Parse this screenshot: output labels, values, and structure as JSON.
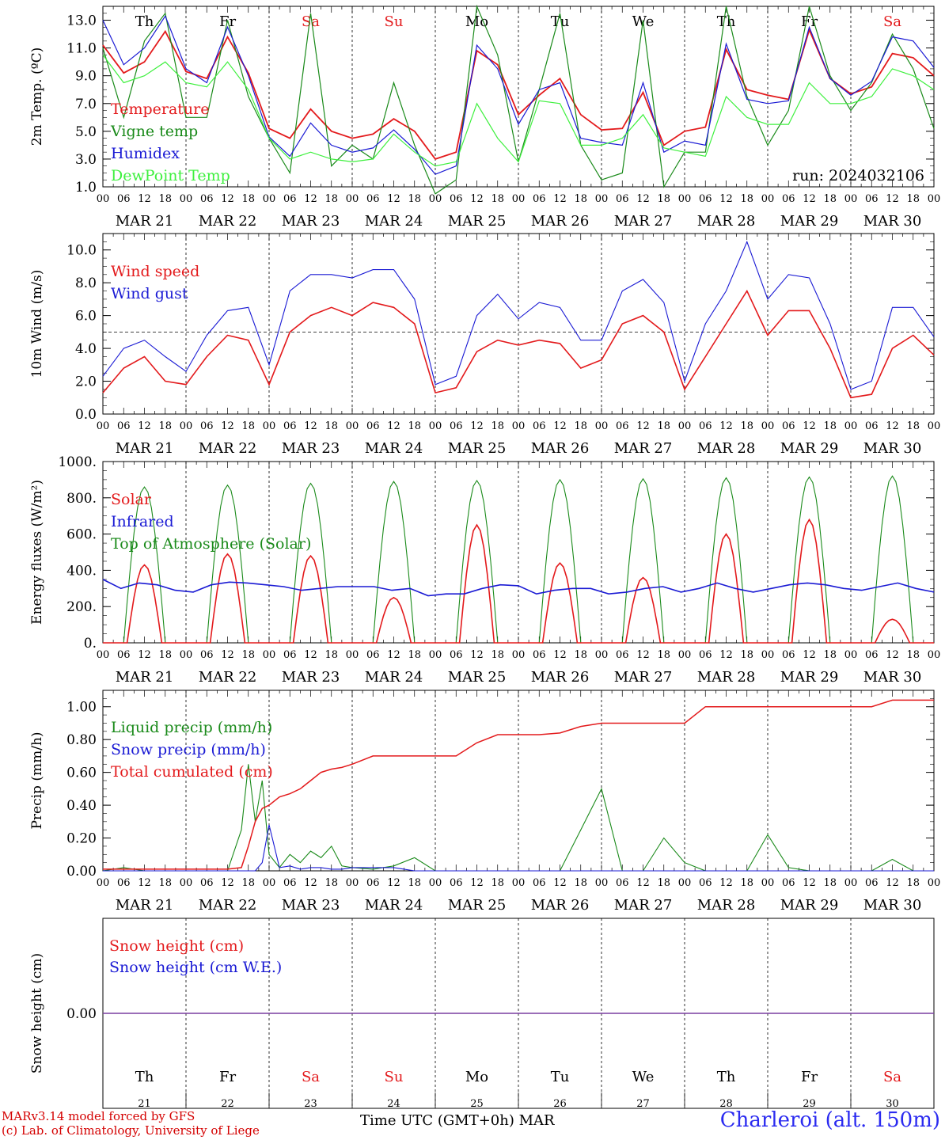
{
  "chart_data": [
    {
      "type": "line",
      "ylabel": "2m Temp. (ºC)",
      "ylim": [
        1.0,
        14.0
      ],
      "yticks": [
        "1.0",
        "3.0",
        "5.0",
        "7.0",
        "9.0",
        "11.0",
        "13.0"
      ],
      "annotation": "run: 2024032106",
      "x_hours": [
        0,
        6,
        12,
        18,
        24,
        30,
        36,
        42,
        48,
        54,
        60,
        66,
        72,
        78,
        84,
        90,
        96,
        102,
        108,
        114,
        120,
        126,
        132,
        138,
        144,
        150,
        156,
        162,
        168,
        174,
        180,
        186,
        192,
        198,
        204,
        210,
        216,
        222,
        228,
        234,
        240
      ],
      "series": [
        {
          "name": "Temperature",
          "color": "#e31a1c",
          "values": [
            11.2,
            9.2,
            10.0,
            12.2,
            9.3,
            8.8,
            11.8,
            9.2,
            5.2,
            4.5,
            6.6,
            5.0,
            4.5,
            4.8,
            5.9,
            5.0,
            3.0,
            3.5,
            10.8,
            9.8,
            6.2,
            7.6,
            8.8,
            6.2,
            5.1,
            5.2,
            7.8,
            4.0,
            5.0,
            5.3,
            10.9,
            8.0,
            7.6,
            7.3,
            12.3,
            8.8,
            7.7,
            8.2,
            10.6,
            10.3,
            9.0
          ]
        },
        {
          "name": "Vigne temp",
          "color": "#1a8a1a",
          "values": [
            11.0,
            6.0,
            11.5,
            13.5,
            6.0,
            6.0,
            13.0,
            7.5,
            4.5,
            2.0,
            13.5,
            2.5,
            4.0,
            3.0,
            8.5,
            4.0,
            0.5,
            1.5,
            14.0,
            10.5,
            2.8,
            8.0,
            13.5,
            4.0,
            1.5,
            2.0,
            13.0,
            1.0,
            3.5,
            3.5,
            14.0,
            7.5,
            4.0,
            6.5,
            14.0,
            9.0,
            6.5,
            8.5,
            12.0,
            9.5,
            5.2
          ]
        },
        {
          "name": "Humidex",
          "color": "#1a1ad4",
          "values": [
            13.0,
            9.8,
            11.0,
            13.3,
            9.5,
            8.5,
            12.5,
            9.0,
            4.6,
            3.2,
            5.6,
            4.0,
            3.5,
            3.8,
            5.1,
            3.7,
            1.9,
            2.5,
            11.2,
            9.5,
            5.5,
            8.0,
            8.5,
            4.5,
            4.2,
            4.0,
            8.5,
            3.5,
            4.3,
            4.0,
            11.3,
            7.3,
            7.0,
            7.2,
            12.5,
            8.8,
            7.6,
            8.6,
            11.8,
            11.5,
            9.6
          ]
        },
        {
          "name": "DewPoint Temp",
          "color": "#3ff03f",
          "values": [
            10.5,
            8.5,
            9.0,
            10.0,
            8.5,
            8.2,
            10.0,
            8.0,
            4.5,
            3.0,
            3.5,
            3.0,
            2.8,
            3.0,
            4.8,
            3.5,
            2.5,
            2.8,
            7.0,
            4.5,
            2.8,
            7.2,
            7.0,
            4.0,
            4.0,
            4.5,
            6.2,
            3.8,
            3.5,
            3.2,
            7.5,
            6.0,
            5.5,
            5.5,
            8.5,
            7.0,
            7.0,
            7.5,
            9.5,
            9.0,
            8.0
          ]
        }
      ]
    },
    {
      "type": "line",
      "ylabel": "10m Wind (m/s)",
      "ylim": [
        0.0,
        11.0
      ],
      "yticks": [
        "0.0",
        "2.0",
        "4.0",
        "6.0",
        "8.0",
        "10.0"
      ],
      "reference_line": 5.0,
      "x_hours": [
        0,
        6,
        12,
        18,
        24,
        30,
        36,
        42,
        48,
        54,
        60,
        66,
        72,
        78,
        84,
        90,
        96,
        102,
        108,
        114,
        120,
        126,
        132,
        138,
        144,
        150,
        156,
        162,
        168,
        174,
        180,
        186,
        192,
        198,
        204,
        210,
        216,
        222,
        228,
        234,
        240
      ],
      "series": [
        {
          "name": "Wind speed",
          "color": "#e31a1c",
          "values": [
            1.3,
            2.8,
            3.5,
            2.0,
            1.8,
            3.5,
            4.8,
            4.5,
            1.8,
            5.0,
            6.0,
            6.5,
            6.0,
            6.8,
            6.5,
            5.5,
            1.3,
            1.6,
            3.8,
            4.5,
            4.2,
            4.5,
            4.3,
            2.8,
            3.3,
            5.5,
            6.0,
            5.0,
            1.5,
            3.5,
            5.5,
            7.5,
            4.8,
            6.3,
            6.3,
            4.0,
            1.0,
            1.2,
            4.0,
            4.8,
            3.6
          ]
        },
        {
          "name": "Wind gust",
          "color": "#1a1ad4",
          "values": [
            2.3,
            4.0,
            4.5,
            3.5,
            2.6,
            4.8,
            6.3,
            6.5,
            3.0,
            7.5,
            8.5,
            8.5,
            8.3,
            8.8,
            8.8,
            7.0,
            1.8,
            2.3,
            6.0,
            7.3,
            5.8,
            6.8,
            6.5,
            4.5,
            4.5,
            7.5,
            8.2,
            6.8,
            2.0,
            5.5,
            7.5,
            10.5,
            7.0,
            8.5,
            8.3,
            5.5,
            1.5,
            2.0,
            6.5,
            6.5,
            4.7
          ]
        }
      ]
    },
    {
      "type": "line",
      "ylabel": "Energy fluxes (W/m²)",
      "ylim": [
        0,
        1000
      ],
      "yticks": [
        "0.",
        "200.",
        "400.",
        "600.",
        "800.",
        "1000."
      ],
      "series": [
        {
          "name": "Solar",
          "color": "#e31a1c",
          "day_peaks": [
            430,
            490,
            480,
            250,
            650,
            440,
            360,
            600,
            680,
            130
          ]
        },
        {
          "name": "Infrared",
          "color": "#1a1ad4",
          "values": [
            350,
            300,
            330,
            320,
            290,
            280,
            320,
            335,
            330,
            320,
            310,
            290,
            300,
            310,
            310,
            310,
            290,
            300,
            260,
            270,
            270,
            300,
            320,
            315,
            270,
            290,
            300,
            300,
            270,
            280,
            300,
            310,
            280,
            300,
            330,
            300,
            280,
            300,
            320,
            330,
            320,
            300,
            290,
            310,
            330,
            300,
            280
          ]
        },
        {
          "name": "Top of Atmosphere (Solar)",
          "color": "#1a8a1a",
          "day_peaks": [
            860,
            870,
            880,
            890,
            895,
            900,
            905,
            910,
            915,
            920
          ]
        }
      ]
    },
    {
      "type": "line",
      "ylabel": "Precip (mm/h)",
      "ylim": [
        0.0,
        1.1
      ],
      "yticks": [
        "0.00",
        "0.20",
        "0.40",
        "0.60",
        "0.80",
        "1.00"
      ],
      "x_hours": [
        0,
        6,
        12,
        18,
        24,
        30,
        36,
        40,
        42,
        44,
        46,
        48,
        51,
        54,
        57,
        60,
        63,
        66,
        69,
        72,
        78,
        84,
        90,
        96,
        102,
        108,
        114,
        120,
        126,
        132,
        138,
        144,
        150,
        156,
        162,
        168,
        174,
        180,
        186,
        192,
        198,
        204,
        210,
        216,
        222,
        228,
        234,
        240
      ],
      "series": [
        {
          "name": "Liquid precip (mm/h)",
          "color": "#1a8a1a",
          "values": [
            0,
            0.02,
            0,
            0,
            0,
            0,
            0,
            0.25,
            0.65,
            0.3,
            0.55,
            0.1,
            0.02,
            0.1,
            0.05,
            0.12,
            0.08,
            0.15,
            0.03,
            0.02,
            0.01,
            0.03,
            0.08,
            0,
            0,
            0,
            0,
            0,
            0,
            0,
            0.25,
            0.5,
            0,
            0,
            0.2,
            0.05,
            0,
            0,
            0,
            0.22,
            0.02,
            0,
            0,
            0,
            0,
            0.07,
            0,
            0
          ]
        },
        {
          "name": "Snow precip (mm/h)",
          "color": "#1a1ad4",
          "values": [
            0,
            0,
            0,
            0,
            0,
            0,
            0,
            0,
            0,
            0,
            0.05,
            0.28,
            0.02,
            0.03,
            0.01,
            0.02,
            0.02,
            0.01,
            0.01,
            0.02,
            0.02,
            0.02,
            0,
            0,
            0,
            0,
            0,
            0,
            0,
            0,
            0,
            0,
            0,
            0,
            0,
            0,
            0,
            0,
            0,
            0,
            0,
            0,
            0,
            0,
            0,
            0,
            0,
            0
          ]
        },
        {
          "name": "Total cumulated (cm)",
          "color": "#e31a1c",
          "values": [
            0.01,
            0.01,
            0.01,
            0.01,
            0.01,
            0.01,
            0.01,
            0.02,
            0.15,
            0.3,
            0.38,
            0.4,
            0.45,
            0.47,
            0.5,
            0.55,
            0.6,
            0.62,
            0.63,
            0.65,
            0.7,
            0.7,
            0.7,
            0.7,
            0.7,
            0.78,
            0.83,
            0.83,
            0.83,
            0.84,
            0.88,
            0.9,
            0.9,
            0.9,
            0.9,
            0.9,
            1.0,
            1.0,
            1.0,
            1.0,
            1.0,
            1.0,
            1.0,
            1.0,
            1.0,
            1.04,
            1.04,
            1.04
          ]
        }
      ]
    },
    {
      "type": "line",
      "ylabel": "Snow height (cm)",
      "yticks": [
        "0.00"
      ],
      "series": [
        {
          "name": "Snow height (cm)",
          "color": "#e31a1c",
          "values": [
            0,
            0
          ]
        },
        {
          "name": "Snow height (cm W.E.)",
          "color": "#1a1ad4",
          "values": [
            0,
            0
          ]
        }
      ]
    }
  ],
  "axis": {
    "hour_ticks": [
      "00",
      "06",
      "12",
      "18"
    ],
    "end_tick": "00",
    "day_labels": [
      "MAR 21",
      "MAR 22",
      "MAR 23",
      "MAR 24",
      "MAR 25",
      "MAR 26",
      "MAR 27",
      "MAR 28",
      "MAR 29",
      "MAR 30"
    ],
    "weekdays": [
      "Th",
      "Fr",
      "Sa",
      "Su",
      "Mo",
      "Tu",
      "We",
      "Th",
      "Fr",
      "Sa"
    ],
    "weekday_colors": [
      "#000000",
      "#000000",
      "#e31a1c",
      "#e31a1c",
      "#000000",
      "#000000",
      "#000000",
      "#000000",
      "#000000",
      "#e31a1c"
    ],
    "day_numbers": [
      "21",
      "22",
      "23",
      "24",
      "25",
      "26",
      "27",
      "28",
      "29",
      "30"
    ],
    "month": "MAR",
    "xlabel": "Time UTC (GMT+0h)"
  },
  "footer": {
    "line1": "MARv3.14 model forced by GFS",
    "line2": "(c) Lab. of Climatology, University of Liege",
    "station": "Charleroi (alt. 150m)"
  }
}
